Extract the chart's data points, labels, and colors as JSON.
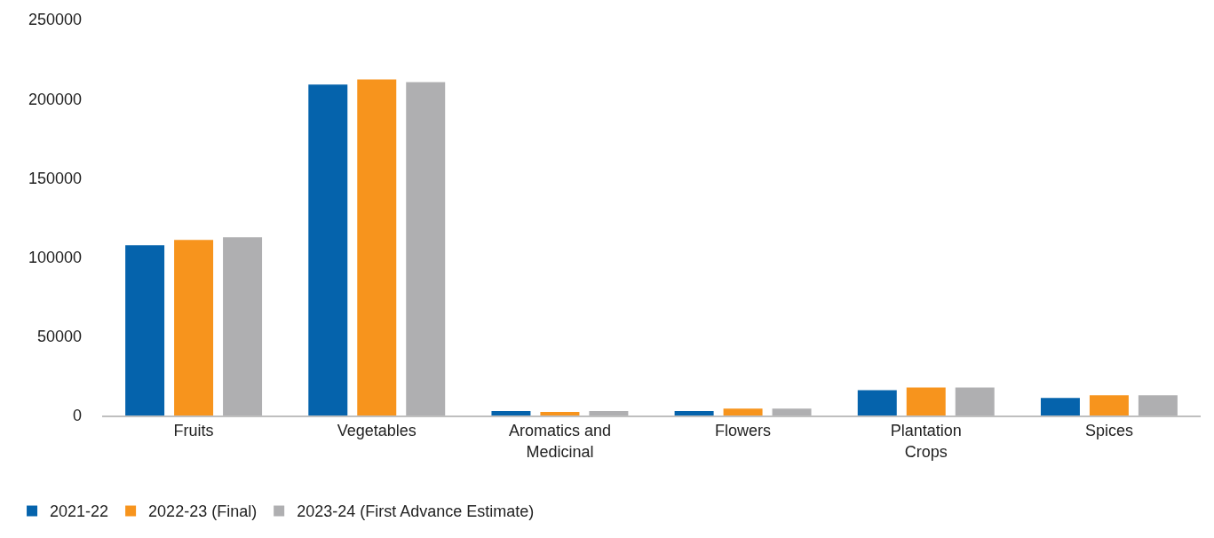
{
  "chart_data": {
    "type": "bar",
    "categories": [
      "Fruits",
      "Vegetables",
      "Aromatics and Medicinal",
      "Flowers",
      "Plantation Crops",
      "Spices"
    ],
    "series": [
      {
        "name": "2021-22",
        "color": "#0563ac",
        "values": [
          107500,
          209000,
          2800,
          2800,
          16000,
          11100
        ]
      },
      {
        "name": "2022-23 (Final)",
        "color": "#f7941d",
        "values": [
          110800,
          212200,
          2200,
          4400,
          17700,
          12700
        ]
      },
      {
        "name": "2023-24 (First Advance Estimate)",
        "color": "#afafb1",
        "values": [
          112500,
          210500,
          2800,
          4400,
          17700,
          12700
        ]
      }
    ],
    "ylim": [
      0,
      250000
    ],
    "yticks": [
      0,
      50000,
      100000,
      150000,
      200000,
      250000
    ],
    "grid": false,
    "legend": "bottom left"
  }
}
